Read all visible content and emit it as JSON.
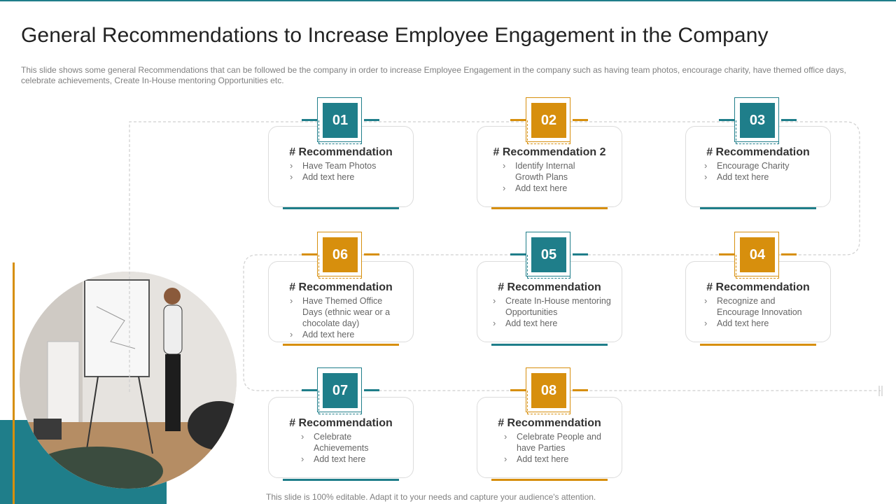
{
  "slide": {
    "title": "General Recommendations to Increase Employee Engagement in the Company",
    "subtitle": "This slide shows some general Recommendations that can be followed  be the company in order to increase Employee Engagement in the company such as having  team photos, encourage charity, have themed office days, celebrate achievements, Create In-House  mentoring Opportunities etc.",
    "footer": "This slide is 100% editable. Adapt it to your needs and capture your audience's attention."
  },
  "colors": {
    "teal": "#1f7e8a",
    "gold": "#d78f0d"
  },
  "cards": [
    {
      "number": "01",
      "accent": "teal",
      "title": "# Recommendation",
      "items": [
        "Have  Team Photos",
        "Add text here"
      ]
    },
    {
      "number": "02",
      "accent": "gold",
      "title": "# Recommendation 2",
      "items": [
        "Identify Internal Growth Plans",
        "Add text here"
      ]
    },
    {
      "number": "03",
      "accent": "teal",
      "title": "# Recommendation",
      "items": [
        "Encourage Charity",
        "Add text here"
      ]
    },
    {
      "number": "04",
      "accent": "gold",
      "title": "# Recommendation",
      "items": [
        "Recognize and Encourage Innovation",
        "Add text here"
      ]
    },
    {
      "number": "05",
      "accent": "teal",
      "title": "# Recommendation",
      "items": [
        "Create In-House mentoring Opportunities",
        "Add text here"
      ]
    },
    {
      "number": "06",
      "accent": "gold",
      "title": "# Recommendation",
      "items": [
        "Have Themed Office Days (ethnic wear or a chocolate day)",
        "Add text here"
      ]
    },
    {
      "number": "07",
      "accent": "teal",
      "title": "# Recommendation",
      "items": [
        "Celebrate Achievements",
        "Add text here"
      ]
    },
    {
      "number": "08",
      "accent": "gold",
      "title": "# Recommendation",
      "items": [
        "Celebrate People and have Parties",
        "Add text here"
      ]
    }
  ]
}
